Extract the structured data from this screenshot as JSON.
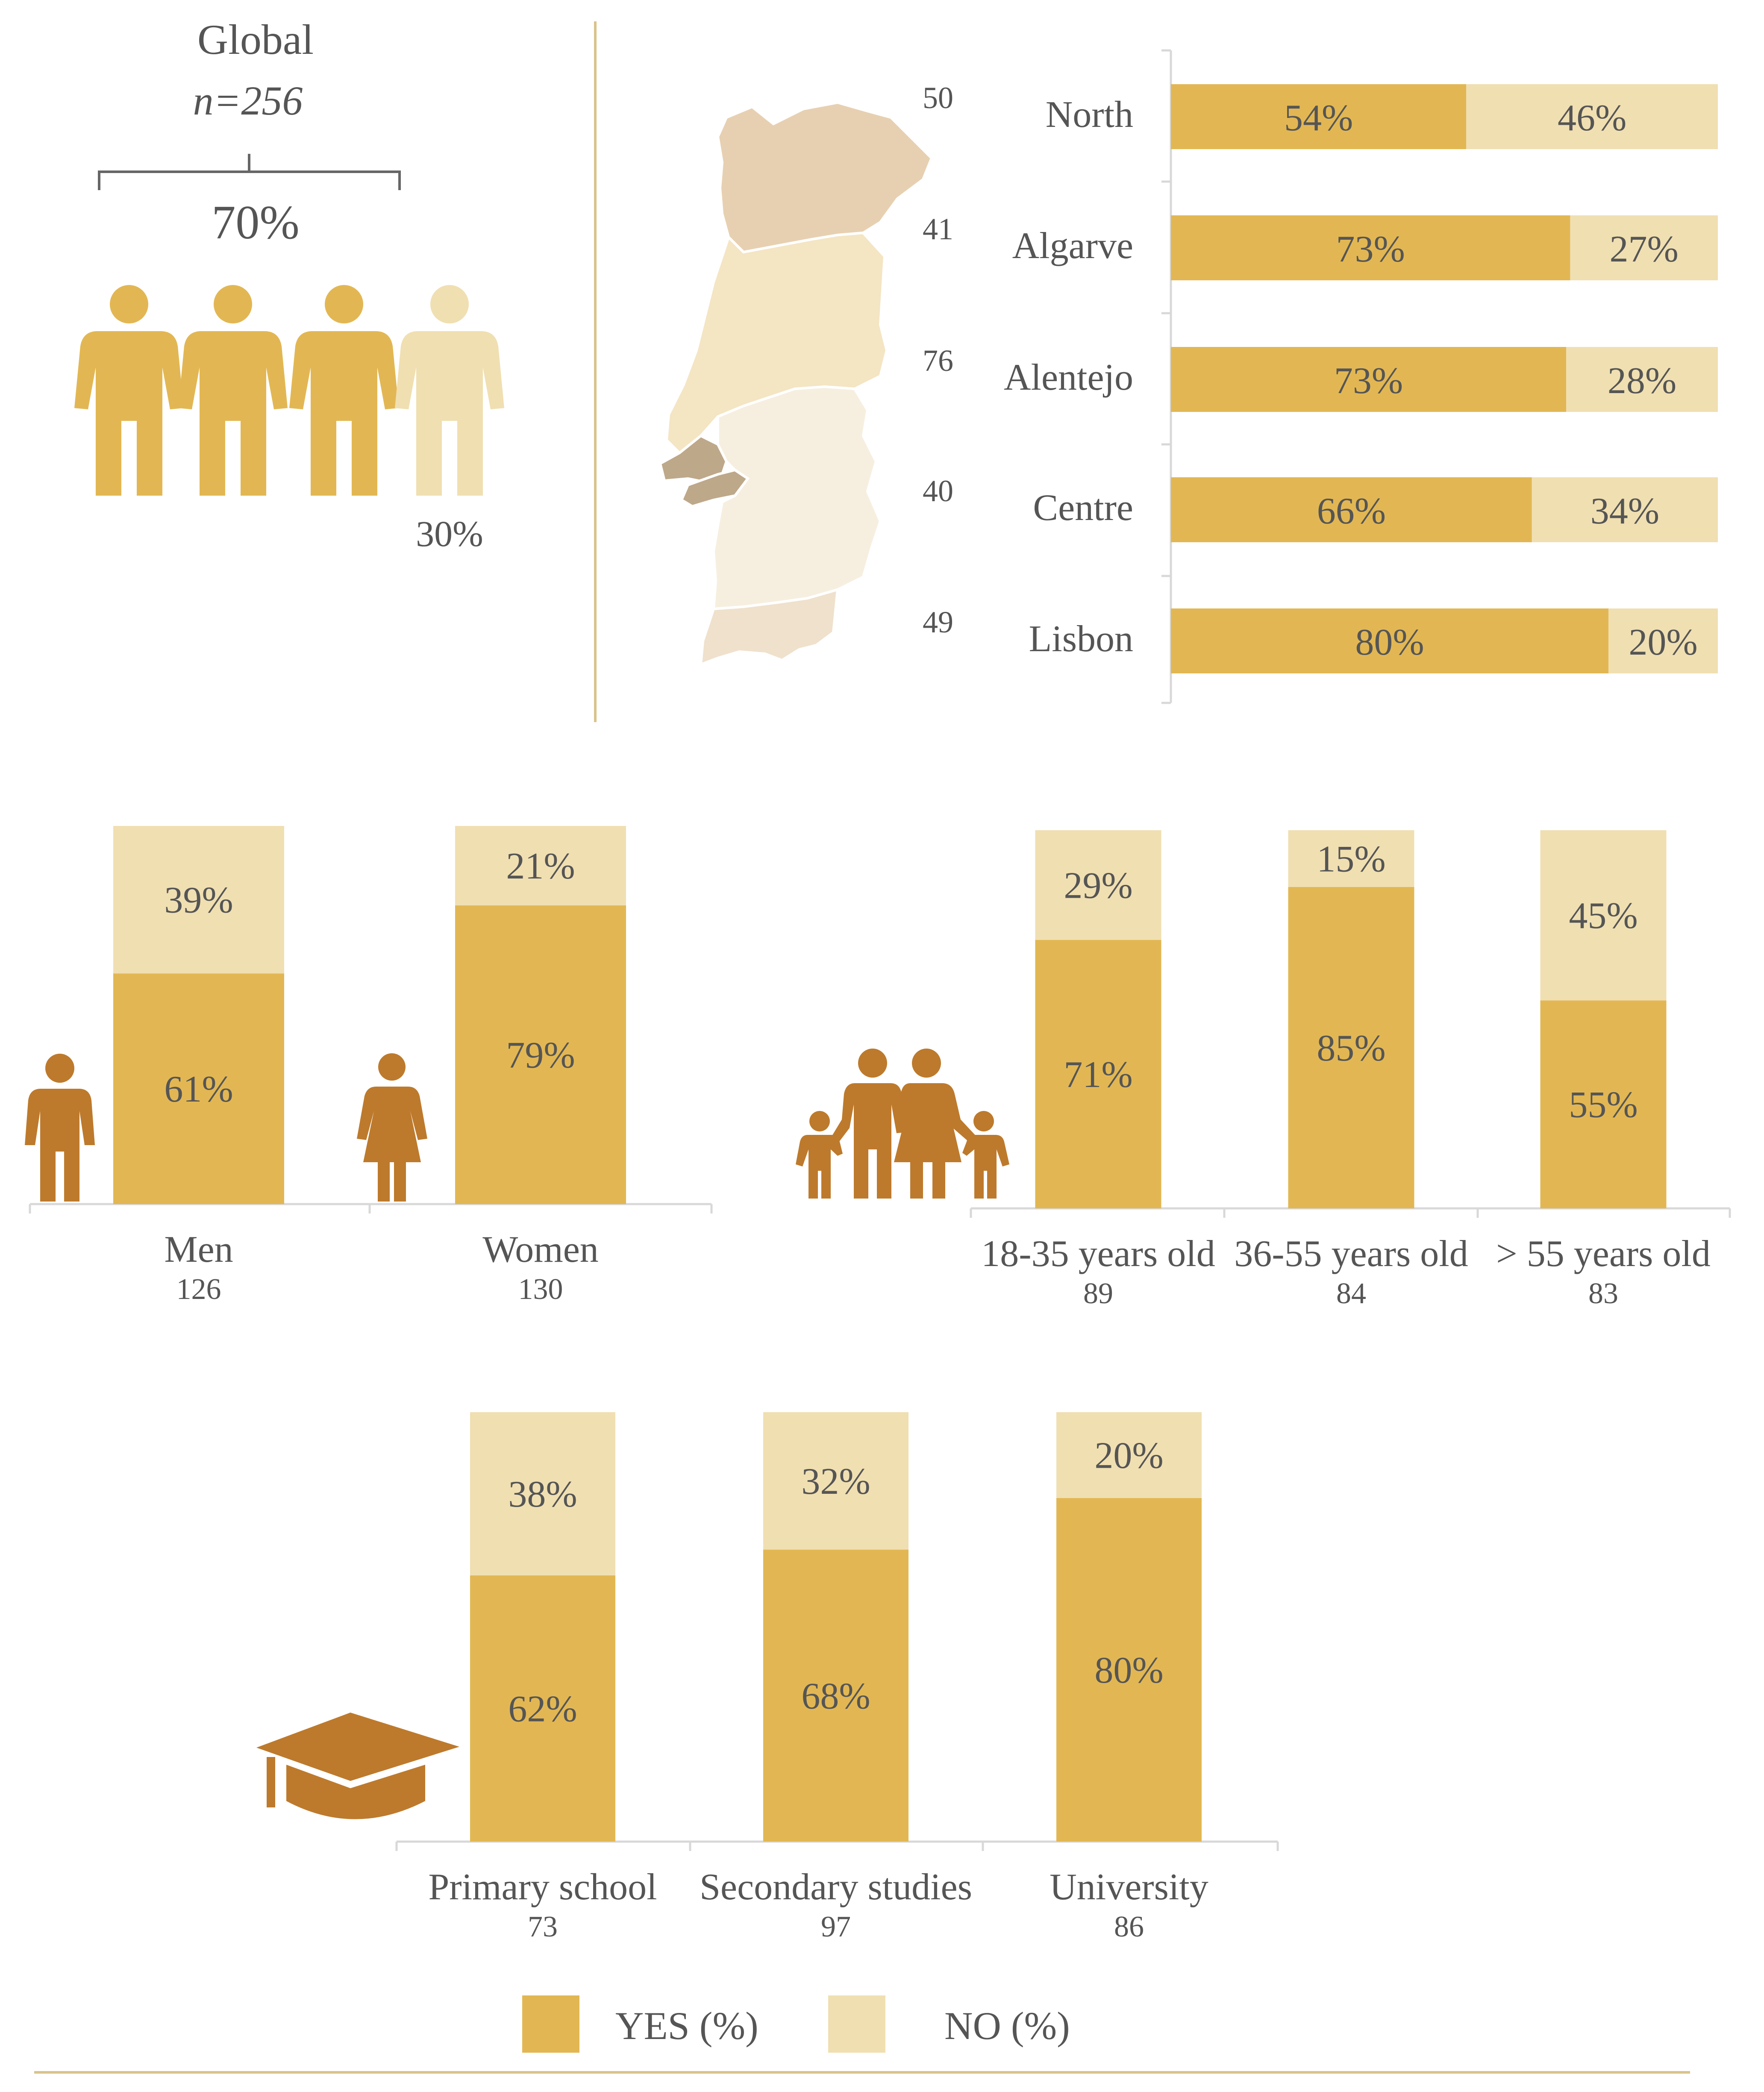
{
  "colors": {
    "yes": "#e2b753",
    "no": "#f0dfb1",
    "icon": "#bd7a2c",
    "axis": "#d8d8d8",
    "divider": "#d9c38a",
    "text": "#555555",
    "map_north": "#e7d0b1",
    "map_centre": "#f4e5c3",
    "map_alentejo": "#f6efe0",
    "map_lisbon": "#bea88a",
    "map_algarve": "#efe1cc"
  },
  "global": {
    "title": "Global",
    "n_label": "n=256",
    "yes_label": "70%",
    "no_label": "30%",
    "icons": [
      "person-icon",
      "person-icon",
      "person-icon",
      "person-icon"
    ]
  },
  "legend": {
    "yes_label": "YES (%)",
    "no_label": "NO (%)"
  },
  "chart_data": [
    {
      "type": "bar",
      "id": "regions",
      "orientation": "horizontal",
      "stacked": true,
      "categories": [
        "North",
        "Algarve",
        "Alentejo",
        "Centre",
        "Lisbon"
      ],
      "n": [
        "50",
        "41",
        "76",
        "40",
        "49"
      ],
      "series": [
        {
          "name": "YES (%)",
          "values": [
            54,
            73,
            73,
            66,
            80
          ],
          "labels": [
            "54%",
            "73%",
            "73%",
            "66%",
            "80%"
          ]
        },
        {
          "name": "NO (%)",
          "values": [
            46,
            27,
            28,
            34,
            20
          ],
          "labels": [
            "46%",
            "27%",
            "28%",
            "34%",
            "20%"
          ]
        }
      ]
    },
    {
      "type": "bar",
      "id": "gender",
      "stacked": true,
      "categories": [
        "Men",
        "Women"
      ],
      "n": [
        "126",
        "130"
      ],
      "series": [
        {
          "name": "YES (%)",
          "values": [
            61,
            79
          ],
          "labels": [
            "61%",
            "79%"
          ]
        },
        {
          "name": "NO (%)",
          "values": [
            39,
            21
          ],
          "labels": [
            "39%",
            "21%"
          ]
        }
      ]
    },
    {
      "type": "bar",
      "id": "age",
      "stacked": true,
      "categories": [
        "18-35 years old",
        "36-55 years old",
        "> 55 years old"
      ],
      "n": [
        "89",
        "84",
        "83"
      ],
      "series": [
        {
          "name": "YES (%)",
          "values": [
            71,
            85,
            55
          ],
          "labels": [
            "71%",
            "85%",
            "55%"
          ]
        },
        {
          "name": "NO (%)",
          "values": [
            29,
            15,
            45
          ],
          "labels": [
            "29%",
            "15%",
            "45%"
          ]
        }
      ]
    },
    {
      "type": "bar",
      "id": "education",
      "stacked": true,
      "categories": [
        "Primary school",
        "Secondary studies",
        "University"
      ],
      "n": [
        "73",
        "97",
        "86"
      ],
      "series": [
        {
          "name": "YES (%)",
          "values": [
            62,
            68,
            80
          ],
          "labels": [
            "62%",
            "68%",
            "80%"
          ]
        },
        {
          "name": "NO (%)",
          "values": [
            38,
            32,
            20
          ],
          "labels": [
            "38%",
            "32%",
            "20%"
          ]
        }
      ]
    }
  ]
}
